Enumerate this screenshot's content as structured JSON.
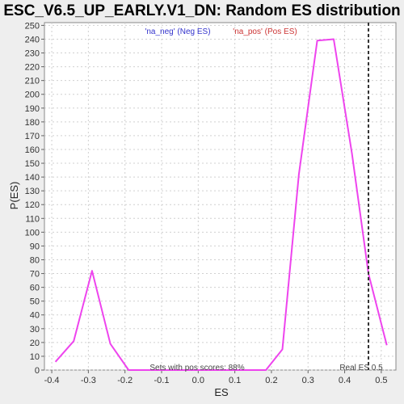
{
  "chart_data": {
    "type": "line",
    "title": "ESC_V6.5_UP_EARLY.V1_DN: Random ES distribution",
    "xlabel": "ES",
    "ylabel": "P(ES)",
    "xlim": [
      -0.42,
      0.54
    ],
    "ylim": [
      0,
      252
    ],
    "x_ticks": [
      "-0.4",
      "-0.3",
      "-0.2",
      "-0.1",
      "0.0",
      "0.1",
      "0.2",
      "0.3",
      "0.4",
      "0.5"
    ],
    "y_ticks": [
      "0",
      "10",
      "20",
      "30",
      "40",
      "50",
      "60",
      "70",
      "80",
      "90",
      "100",
      "110",
      "120",
      "130",
      "140",
      "150",
      "160",
      "170",
      "180",
      "190",
      "200",
      "210",
      "220",
      "230",
      "240",
      "250"
    ],
    "grid": true,
    "legend": [
      {
        "name": "'na_neg' (Neg ES)",
        "color": "#3333cc"
      },
      {
        "name": "'na_pos' (Pos ES)",
        "color": "#cc3333"
      }
    ],
    "series": [
      {
        "color": "#ee44ee",
        "x": [
          -0.39,
          -0.34,
          -0.29,
          -0.24,
          -0.19,
          -0.14,
          -0.09,
          -0.04,
          0.01,
          0.06,
          0.11,
          0.16,
          0.185,
          0.23,
          0.275,
          0.325,
          0.37,
          0.42,
          0.465,
          0.515
        ],
        "y": [
          6,
          21,
          72,
          19,
          0,
          0,
          0,
          0,
          0,
          0,
          0,
          0,
          0,
          15,
          142,
          239,
          240,
          157,
          70,
          18
        ]
      }
    ],
    "reference_line": {
      "x": 0.465,
      "style": "dashed",
      "color": "#333333",
      "label": "Real ES 0.5"
    },
    "annotations": [
      "Sets with pos scores: 88%"
    ]
  }
}
